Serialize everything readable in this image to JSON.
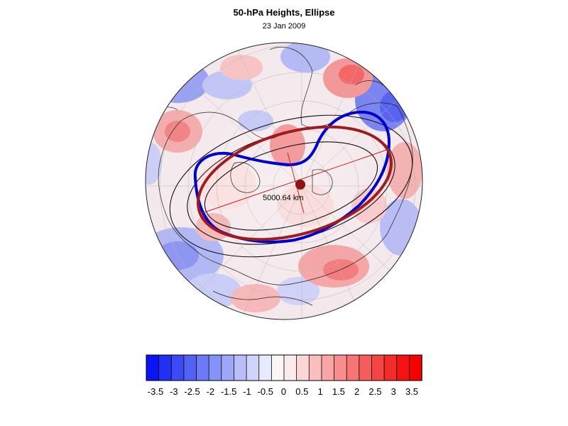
{
  "title": "50-hPa Heights, Ellipse",
  "subtitle": "23 Jan 2009",
  "distance_label": "5000.64 km",
  "colorbar": {
    "levels": [
      "-3.5",
      "-3",
      "-2.5",
      "-2",
      "-1.5",
      "-1",
      "-0.5",
      "0",
      "0.5",
      "1",
      "1.5",
      "2",
      "2.5",
      "3",
      "3.5"
    ],
    "colors": [
      "#0a14f5",
      "#2130f4",
      "#3a4af4",
      "#5262f4",
      "#6c7bf5",
      "#8592f6",
      "#9ea8f7",
      "#b7bef9",
      "#cfd4fb",
      "#e7e9fd",
      "#fbf5f6",
      "#fdebeb",
      "#fcd6d6",
      "#fbbebe",
      "#faa6a6",
      "#f98e8e",
      "#f77575",
      "#f65c5c",
      "#f54444",
      "#f42b2b",
      "#f31313",
      "#f80000"
    ]
  },
  "colors": {
    "ellipse_fit": "#a01c1c",
    "height_contour": "#0000cc",
    "axis_line": "#cc2222"
  }
}
